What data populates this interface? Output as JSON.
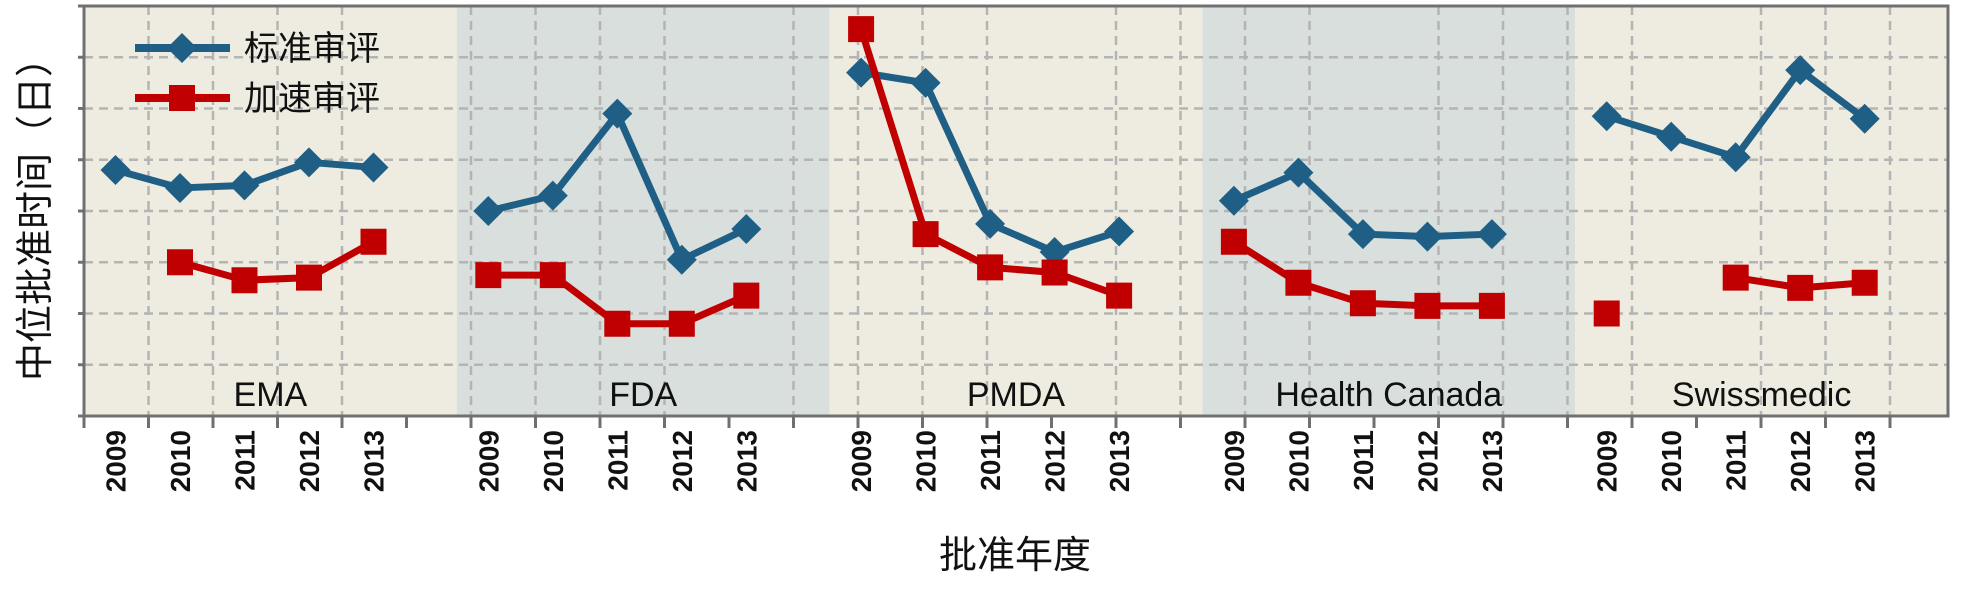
{
  "chart_data": {
    "type": "line",
    "ylabel": "中位批准时间（日）",
    "xlabel": "批准年度",
    "ylim": [
      0,
      8
    ],
    "grid": true,
    "legend_placement": "top-left",
    "colors": {
      "标准审评": "#1f5f86",
      "加速审评": "#c00000",
      "panel_light": "#eeebe0",
      "panel_shaded": "#d8dfdc",
      "grid": "#b4b4b4",
      "axis": "#707070"
    },
    "series_names": [
      "标准审评",
      "加速审评"
    ],
    "panels": [
      {
        "label": "EMA",
        "years": [
          "2009",
          "2010",
          "2011",
          "2012",
          "2013"
        ],
        "series": [
          {
            "name": "标准审评",
            "values": [
              4.8,
              4.45,
              4.5,
              4.95,
              4.85
            ]
          },
          {
            "name": "加速审评",
            "values": [
              null,
              3.0,
              2.65,
              2.7,
              3.4
            ]
          }
        ]
      },
      {
        "label": "FDA",
        "years": [
          "2009",
          "2010",
          "2011",
          "2012",
          "2013"
        ],
        "series": [
          {
            "name": "标准审评",
            "values": [
              4.0,
              4.3,
              5.9,
              3.05,
              3.65
            ]
          },
          {
            "name": "加速审评",
            "values": [
              2.75,
              2.75,
              1.8,
              1.8,
              2.35
            ]
          }
        ]
      },
      {
        "label": "PMDA",
        "years": [
          "2009",
          "2010",
          "2011",
          "2012",
          "2013"
        ],
        "series": [
          {
            "name": "标准审评",
            "values": [
              6.7,
              6.5,
              3.75,
              3.2,
              3.6
            ]
          },
          {
            "name": "加速审评",
            "values": [
              7.55,
              3.55,
              2.9,
              2.8,
              2.35
            ]
          }
        ]
      },
      {
        "label": "Health Canada",
        "years": [
          "2009",
          "2010",
          "2011",
          "2012",
          "2013"
        ],
        "series": [
          {
            "name": "标准审评",
            "values": [
              4.2,
              4.75,
              3.55,
              3.5,
              3.55
            ]
          },
          {
            "name": "加速审评",
            "values": [
              3.4,
              2.6,
              2.2,
              2.15,
              2.15
            ]
          }
        ]
      },
      {
        "label": "Swissmedic",
        "years": [
          "2009",
          "2010",
          "2011",
          "2012",
          "2013"
        ],
        "series": [
          {
            "name": "标准审评",
            "values": [
              5.85,
              5.45,
              5.05,
              6.75,
              5.8
            ]
          },
          {
            "name": "加速审评",
            "values": [
              2.0,
              null,
              2.7,
              2.5,
              2.6
            ]
          }
        ]
      }
    ]
  }
}
